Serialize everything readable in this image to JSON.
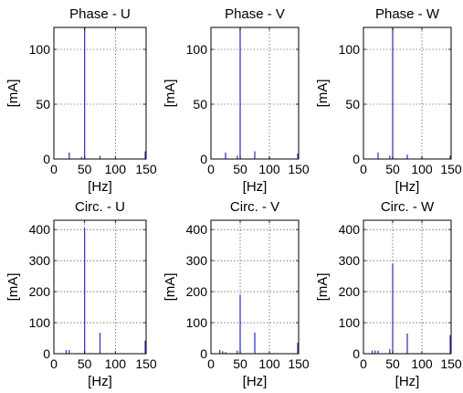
{
  "chart_data": [
    {
      "type": "bar",
      "title": "Phase - U",
      "xlabel": "[Hz]",
      "ylabel": "[mA]",
      "xlim": [
        0,
        150
      ],
      "ylim": [
        0,
        120
      ],
      "xticks": [
        "0",
        "50",
        "100",
        "150"
      ],
      "yticks": [
        "0",
        "50",
        "100"
      ],
      "grid": true,
      "color": "#3a3ac8",
      "series": [
        {
          "x": [
            25,
            45,
            50,
            75,
            100,
            149
          ],
          "y": [
            6,
            2,
            120,
            3,
            1,
            7
          ]
        }
      ]
    },
    {
      "type": "bar",
      "title": "Phase - V",
      "xlabel": "[Hz]",
      "ylabel": "[mA]",
      "xlim": [
        0,
        150
      ],
      "ylim": [
        0,
        120
      ],
      "xticks": [
        "0",
        "50",
        "100",
        "150"
      ],
      "yticks": [
        "0",
        "50",
        "100"
      ],
      "grid": true,
      "color": "#3a3ac8",
      "series": [
        {
          "x": [
            25,
            45,
            50,
            75,
            100,
            149
          ],
          "y": [
            6,
            3,
            120,
            7,
            2,
            5
          ]
        }
      ]
    },
    {
      "type": "bar",
      "title": "Phase - W",
      "xlabel": "[Hz]",
      "ylabel": "[mA]",
      "xlim": [
        0,
        150
      ],
      "ylim": [
        0,
        120
      ],
      "xticks": [
        "0",
        "50",
        "100",
        "150"
      ],
      "yticks": [
        "0",
        "50",
        "100"
      ],
      "grid": true,
      "color": "#3a3ac8",
      "series": [
        {
          "x": [
            25,
            45,
            50,
            75,
            100,
            149
          ],
          "y": [
            6,
            3,
            120,
            4,
            2,
            3
          ]
        }
      ]
    },
    {
      "type": "bar",
      "title": "Circ. - U",
      "xlabel": "[Hz]",
      "ylabel": "[mA]",
      "xlim": [
        0,
        150
      ],
      "ylim": [
        0,
        430
      ],
      "xticks": [
        "0",
        "50",
        "100",
        "150"
      ],
      "yticks": [
        "0",
        "100",
        "200",
        "300",
        "400"
      ],
      "grid": true,
      "color": "#3a3ac8",
      "series": [
        {
          "x": [
            20,
            25,
            50,
            75,
            149
          ],
          "y": [
            12,
            12,
            405,
            68,
            42
          ]
        }
      ]
    },
    {
      "type": "bar",
      "title": "Circ. - V",
      "xlabel": "[Hz]",
      "ylabel": "[mA]",
      "xlim": [
        0,
        150
      ],
      "ylim": [
        0,
        430
      ],
      "xticks": [
        "0",
        "50",
        "100",
        "150"
      ],
      "yticks": [
        "0",
        "100",
        "200",
        "300",
        "400"
      ],
      "grid": true,
      "color": "#3a3ac8",
      "series": [
        {
          "x": [
            15,
            20,
            25,
            45,
            50,
            75,
            149
          ],
          "y": [
            12,
            8,
            5,
            10,
            190,
            68,
            35
          ]
        }
      ]
    },
    {
      "type": "bar",
      "title": "Circ. - W",
      "xlabel": "[Hz]",
      "ylabel": "[mA]",
      "xlim": [
        0,
        150
      ],
      "ylim": [
        0,
        430
      ],
      "xticks": [
        "0",
        "50",
        "100",
        "150"
      ],
      "yticks": [
        "0",
        "100",
        "200",
        "300",
        "400"
      ],
      "grid": true,
      "color": "#3a3ac8",
      "series": [
        {
          "x": [
            15,
            20,
            25,
            45,
            50,
            75,
            149
          ],
          "y": [
            10,
            10,
            10,
            15,
            290,
            65,
            60
          ]
        }
      ]
    }
  ]
}
